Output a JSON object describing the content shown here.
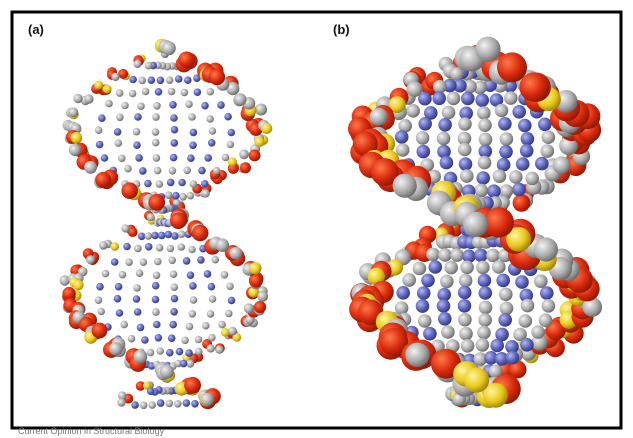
{
  "figure": {
    "panels": [
      {
        "label": "(a)"
      },
      {
        "label": "(b)"
      }
    ],
    "source": "Current Opinion in Structural Biology"
  }
}
